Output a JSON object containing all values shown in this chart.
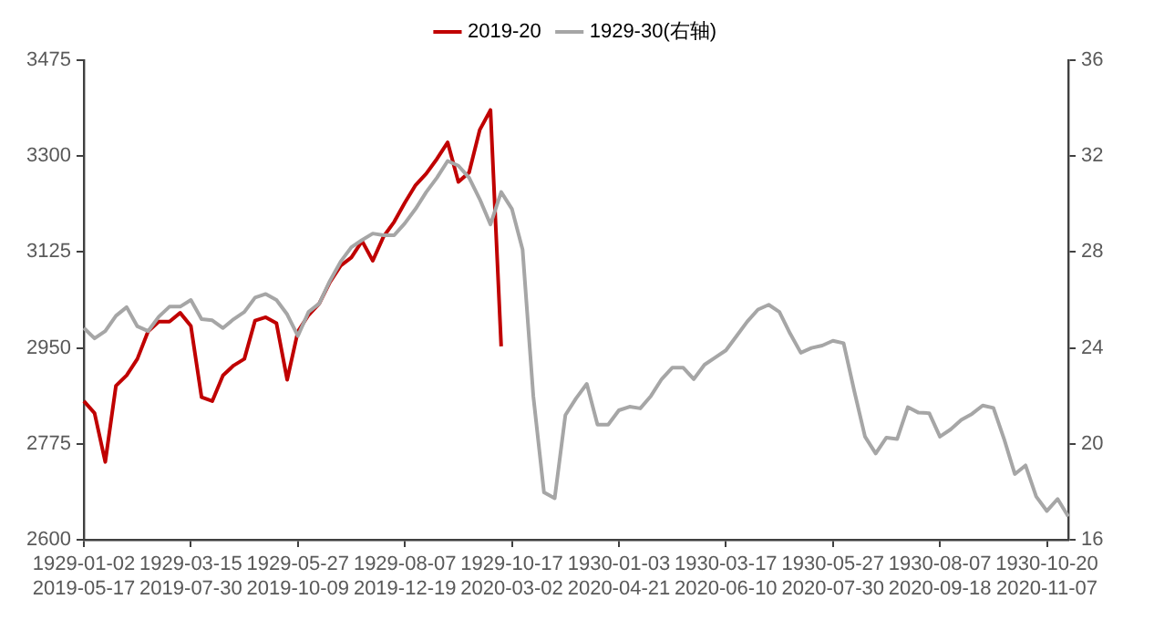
{
  "chart_data": {
    "type": "line",
    "legend": "top",
    "grid": false,
    "marker": "none",
    "line_style": "solid",
    "categories": [
      "1929-01-02\n2019-05-17",
      null,
      null,
      null,
      null,
      null,
      null,
      null,
      null,
      null,
      "1929-03-15\n2019-07-30",
      null,
      null,
      null,
      null,
      null,
      null,
      null,
      null,
      null,
      "1929-05-27\n2019-10-09",
      null,
      null,
      null,
      null,
      null,
      null,
      null,
      null,
      null,
      "1929-08-07\n2019-12-19",
      null,
      null,
      null,
      null,
      null,
      null,
      null,
      null,
      null,
      "1929-10-17\n2020-03-02",
      null,
      null,
      null,
      null,
      null,
      null,
      null,
      null,
      null,
      "1930-01-03\n2020-04-21",
      null,
      null,
      null,
      null,
      null,
      null,
      null,
      null,
      null,
      "1930-03-17\n2020-06-10",
      null,
      null,
      null,
      null,
      null,
      null,
      null,
      null,
      null,
      "1930-05-27\n2020-07-30",
      null,
      null,
      null,
      null,
      null,
      null,
      null,
      null,
      null,
      "1930-08-07\n2020-09-18",
      null,
      null,
      null,
      null,
      null,
      null,
      null,
      null,
      null,
      "1930-10-20\n2020-11-07",
      null,
      null
    ],
    "ylim": [
      2600,
      3475
    ],
    "yticks": [
      2600,
      2775,
      2950,
      3125,
      3300,
      3475
    ],
    "y2lim": [
      16,
      36
    ],
    "y2ticks": [
      16,
      20,
      24,
      28,
      32,
      36
    ],
    "series": [
      {
        "name": "2019-20",
        "color": "#c00000",
        "values": [
          2853,
          2831,
          2742,
          2881,
          2900,
          2930,
          2980,
          2998,
          2998,
          3014,
          2990,
          2860,
          2853,
          2900,
          2918,
          2930,
          3000,
          3006,
          2995,
          2892,
          2980,
          3010,
          3031,
          3070,
          3100,
          3115,
          3145,
          3109,
          3153,
          3180,
          3215,
          3247,
          3268,
          3295,
          3325,
          3253,
          3270,
          3348,
          3384,
          2953,
          null,
          null,
          null,
          null,
          null,
          null,
          null,
          null,
          null,
          null,
          null,
          null,
          null,
          null,
          null,
          null,
          null,
          null,
          null,
          null,
          null,
          null,
          null,
          null,
          null,
          null,
          null,
          null,
          null,
          null,
          null,
          null,
          null,
          null,
          null,
          null,
          null,
          null,
          null,
          null,
          null,
          null,
          null,
          null,
          null,
          null,
          null,
          null,
          null,
          null,
          null,
          null,
          null
        ]
      },
      {
        "name": "1929-30(右轴)",
        "color": "#a6a6a6",
        "axis": "y2",
        "values": [
          24.83,
          24.4,
          24.7,
          25.34,
          25.7,
          24.9,
          24.7,
          25.3,
          25.72,
          25.72,
          26.0,
          25.2,
          25.15,
          24.83,
          25.2,
          25.5,
          26.1,
          26.25,
          26.0,
          25.4,
          24.5,
          25.5,
          25.85,
          26.8,
          27.6,
          28.2,
          28.5,
          28.77,
          28.7,
          28.7,
          29.2,
          29.8,
          30.5,
          31.1,
          31.8,
          31.6,
          31.1,
          30.2,
          29.15,
          30.5,
          29.8,
          28.1,
          22.0,
          17.98,
          17.73,
          21.2,
          21.9,
          22.5,
          20.8,
          20.8,
          21.4,
          21.55,
          21.48,
          22.0,
          22.7,
          23.18,
          23.18,
          22.7,
          23.3,
          23.6,
          23.9,
          24.5,
          25.1,
          25.6,
          25.8,
          25.5,
          24.6,
          23.8,
          24.0,
          24.1,
          24.3,
          24.2,
          22.2,
          20.3,
          19.6,
          20.26,
          20.2,
          21.53,
          21.3,
          21.28,
          20.3,
          20.6,
          21.0,
          21.25,
          21.6,
          21.5,
          20.2,
          18.74,
          19.1,
          17.8,
          17.2,
          17.7,
          16.97
        ]
      }
    ]
  }
}
